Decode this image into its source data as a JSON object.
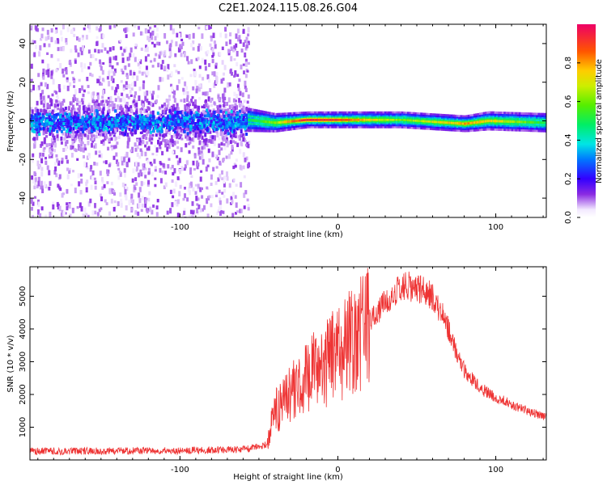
{
  "figure": {
    "title": "C2E1.2024.115.08.26.G04"
  },
  "chart_data": [
    {
      "type": "heatmap",
      "xlabel": "Height of straight line (km)",
      "ylabel": "Frequency (Hz)",
      "xlim": [
        -195,
        132
      ],
      "ylim": [
        -50,
        50
      ],
      "xticks": [
        -100,
        0,
        100
      ],
      "yticks": [
        -40,
        -20,
        0,
        20,
        40
      ],
      "colorbar": {
        "label": "Normalized spectral amplitude",
        "range": [
          0,
          1
        ],
        "ticks": [
          "0.0",
          "0.2",
          "0.4",
          "0.6",
          "0.8"
        ],
        "tick_values": [
          0,
          0.2,
          0.4,
          0.6,
          0.8
        ]
      },
      "noise_region": {
        "x": [
          -195,
          -57
        ],
        "freq_spread_hz": 50
      },
      "signal_band": [
        {
          "x": -57,
          "center_hz": 0.5,
          "width_hz": 5,
          "amp": 0.45
        },
        {
          "x": -40,
          "center_hz": -1,
          "width_hz": 4,
          "amp": 0.65
        },
        {
          "x": -20,
          "center_hz": 0.5,
          "width_hz": 3.5,
          "amp": 0.95
        },
        {
          "x": 0,
          "center_hz": 0.5,
          "width_hz": 3.5,
          "amp": 0.9
        },
        {
          "x": 40,
          "center_hz": 0.5,
          "width_hz": 3.5,
          "amp": 0.6
        },
        {
          "x": 80,
          "center_hz": -1.5,
          "width_hz": 3.5,
          "amp": 0.8
        },
        {
          "x": 95,
          "center_hz": 0,
          "width_hz": 4,
          "amp": 0.75
        },
        {
          "x": 132,
          "center_hz": -1,
          "width_hz": 4,
          "amp": 0.5
        }
      ]
    },
    {
      "type": "line",
      "xlabel": "Height of straight line (km)",
      "ylabel": "SNR (10 * v/v)",
      "xlim": [
        -195,
        132
      ],
      "ylim": [
        0,
        5900
      ],
      "xticks": [
        -100,
        0,
        100
      ],
      "yticks": [
        1000,
        2000,
        3000,
        4000,
        5000
      ],
      "color": "#ee3333",
      "series": [
        {
          "x": [
            -195,
            -150,
            -100,
            -60,
            -45,
            -43,
            -40,
            -35,
            -30,
            -20,
            -10,
            0,
            10,
            20,
            30,
            35,
            40,
            45,
            50,
            55,
            60,
            65,
            70,
            75,
            80,
            90,
            100,
            110,
            120,
            132
          ],
          "y": [
            250,
            250,
            260,
            300,
            450,
            900,
            1500,
            1800,
            2100,
            2600,
            3000,
            3400,
            3800,
            4300,
            4800,
            5100,
            5250,
            5300,
            5300,
            5150,
            4950,
            4550,
            4000,
            3300,
            2750,
            2200,
            1900,
            1700,
            1500,
            1300
          ]
        }
      ]
    }
  ]
}
